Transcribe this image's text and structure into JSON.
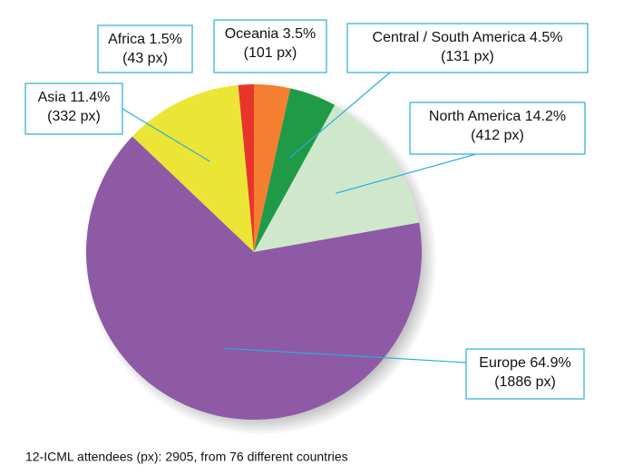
{
  "chart_data": {
    "type": "pie",
    "categories": [
      "Africa",
      "Oceania",
      "Central / South America",
      "North America",
      "Europe",
      "Asia"
    ],
    "values": [
      1.5,
      3.5,
      4.5,
      14.2,
      64.9,
      11.4
    ],
    "value_labels": [
      "1.5%",
      "3.5%",
      "4.5%",
      "14.2%",
      "64.9%",
      "11.4%"
    ],
    "count_labels": [
      "(43 px)",
      "(101 px)",
      "(131 px)",
      "(412 px)",
      "(1886 px)",
      "(332 px)"
    ],
    "colors": [
      "#e8352b",
      "#f47f30",
      "#1f9b48",
      "#cfe8cc",
      "#8e5aa5",
      "#ebe535"
    ],
    "note": "12-ICML attendees (px): 2905, from 76 different countries"
  }
}
